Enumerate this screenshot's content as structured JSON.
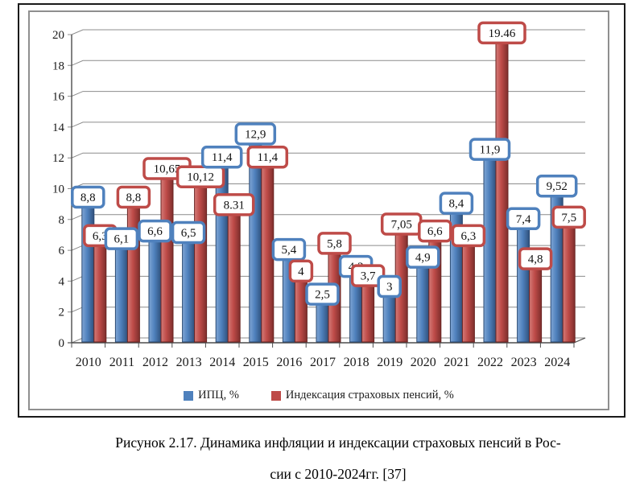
{
  "caption": {
    "line1": "Рисунок 2.17. Динамика инфляции и индексации страховых пенсий в Рос-",
    "line2": "сии с 2010-2024гг. [37]"
  },
  "legend": {
    "items": [
      {
        "label": "ИПЦ, %",
        "color": "#4F81BD"
      },
      {
        "label": "Индексация страховых пенсий, %",
        "color": "#BE4B48"
      }
    ]
  },
  "chart_data": {
    "type": "bar",
    "title": "",
    "xlabel": "",
    "ylabel": "",
    "categories": [
      "2010",
      "2011",
      "2012",
      "2013",
      "2014",
      "2015",
      "2016",
      "2017",
      "2018",
      "2019",
      "2020",
      "2021",
      "2022",
      "2023",
      "2024"
    ],
    "series": [
      {
        "name": "ИПЦ, %",
        "key": "ipc",
        "values": [
          8.8,
          6.1,
          6.6,
          6.5,
          11.4,
          12.9,
          5.4,
          2.5,
          4.3,
          3,
          4.9,
          8.4,
          11.9,
          7.4,
          9.52
        ],
        "labels": [
          "8,8",
          "6,1",
          "6,6",
          "6,5",
          "11,4",
          "12,9",
          "5,4",
          "2,5",
          "4,3",
          "3",
          "4,9",
          "8,4",
          "11,9",
          "7,4",
          "9,52"
        ],
        "color": "#4F81BD",
        "border": "#2A4A73",
        "fill_light": "#7FA5D4",
        "fill_dark": "#30517C"
      },
      {
        "name": "Индексация страховых пенсий, %",
        "key": "indexation",
        "values": [
          6.3,
          8.8,
          10.65,
          10.12,
          8.31,
          11.4,
          4,
          5.8,
          3.7,
          7.05,
          6.6,
          6.3,
          19.46,
          4.8,
          7.5
        ],
        "labels": [
          "6,3",
          "8,8",
          "10,65",
          "10,12",
          "8.31",
          "11,4",
          "4",
          "5,8",
          "3,7",
          "7,05",
          "6,6",
          "6,3",
          "19.46",
          "4,8",
          "7,5"
        ],
        "color": "#BE4B48",
        "border": "#6A2422",
        "fill_light": "#D47B78",
        "fill_dark": "#7E2E2C"
      }
    ],
    "ylim": [
      0,
      20
    ],
    "ytick_step": 2,
    "yticks": [
      "0",
      "2",
      "4",
      "6",
      "8",
      "10",
      "12",
      "14",
      "16",
      "18",
      "20"
    ],
    "grid": true,
    "legend_position": "bottom",
    "style_3d": true
  }
}
